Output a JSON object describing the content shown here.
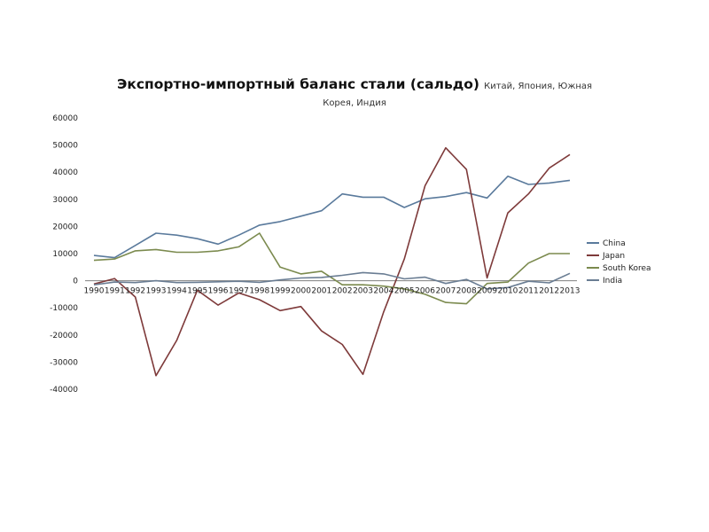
{
  "chart_data": {
    "type": "line",
    "title": "Экспортно-импортный баланс стали (сальдо)",
    "subtitle_line1": "Китай, Япония, Южная",
    "subtitle_line2": "Корея, Индия",
    "x": [
      "1990",
      "1991",
      "1992",
      "1993",
      "1994",
      "1995",
      "1996",
      "1997",
      "1998",
      "1999",
      "2000",
      "2001",
      "2002",
      "2003",
      "2004",
      "2005",
      "2006",
      "2007",
      "2008",
      "2009",
      "2010",
      "2011",
      "2012",
      "2013"
    ],
    "ylim": [
      -40000,
      60000
    ],
    "yticks": [
      60000,
      50000,
      40000,
      30000,
      20000,
      10000,
      0,
      -10000,
      -20000,
      -30000,
      -40000
    ],
    "ytick_labels": [
      "60000",
      "50000",
      "40000",
      "30000",
      "20000",
      "10000",
      "0",
      "-10000",
      "-20000",
      "-30000",
      "-40000"
    ],
    "legend_position": "right",
    "grid": false,
    "series": [
      {
        "name": "China",
        "color": "#5a7a9c",
        "values": [
          9300,
          8500,
          13000,
          17500,
          16800,
          15500,
          13500,
          16800,
          20500,
          21800,
          23800,
          25800,
          32000,
          30800,
          30800,
          27000,
          30200,
          31000,
          32500,
          30500,
          38500,
          35500,
          36000,
          37000
        ]
      },
      {
        "name": "Japan",
        "color": "#7e3a3a",
        "values": [
          -1200,
          800,
          -6000,
          -35000,
          -22000,
          -3500,
          -9000,
          -4500,
          -7000,
          -11000,
          -9500,
          -18500,
          -23500,
          -34500,
          -11500,
          8000,
          35000,
          49000,
          41000,
          1000,
          25000,
          32000,
          41500,
          46500
        ]
      },
      {
        "name": "South Korea",
        "color": "#7b8a4e",
        "values": [
          7500,
          8000,
          11000,
          11500,
          10500,
          10500,
          11000,
          12500,
          17500,
          5000,
          2500,
          3500,
          -1500,
          -1500,
          -2000,
          -3000,
          -5000,
          -8000,
          -8500,
          -1000,
          -500,
          6500,
          10000,
          10000
        ]
      },
      {
        "name": "India",
        "color": "#6a7d93",
        "values": [
          -1500,
          -500,
          -700,
          0,
          -700,
          -600,
          -400,
          -200,
          -600,
          300,
          1000,
          1200,
          2000,
          3000,
          2500,
          700,
          1300,
          -1000,
          500,
          -3000,
          -2500,
          -200,
          -800,
          2700
        ]
      }
    ]
  }
}
